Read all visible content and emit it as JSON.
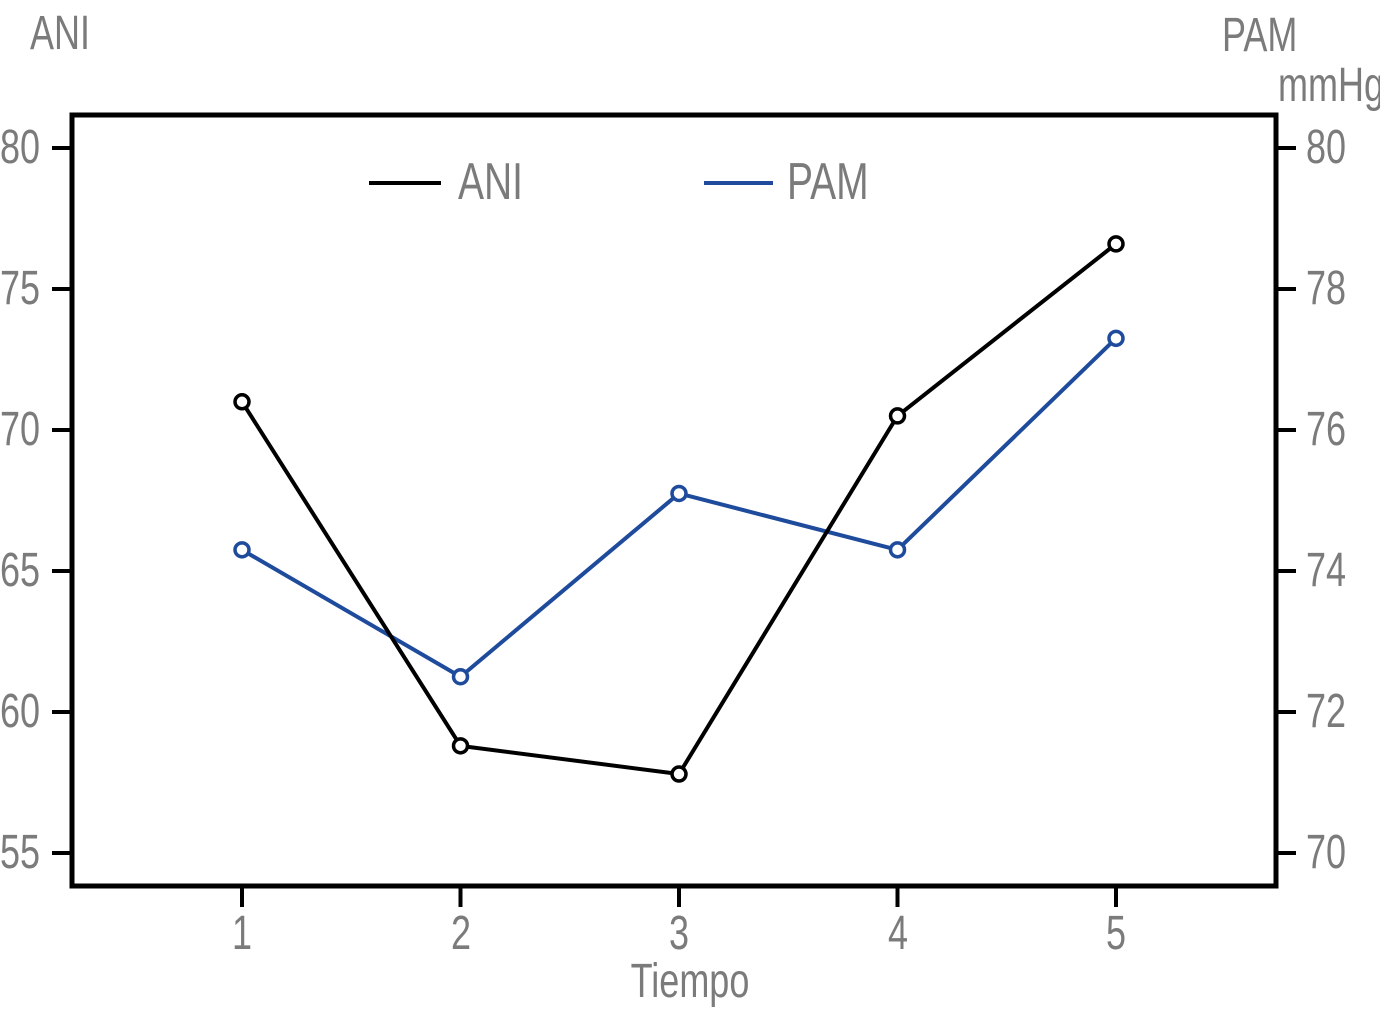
{
  "chart_data": {
    "type": "line",
    "x": [
      1,
      2,
      3,
      4,
      5
    ],
    "x_tick_labels": [
      "1",
      "2",
      "3",
      "4",
      "5"
    ],
    "xlabel": "Tiempo",
    "left_axis": {
      "title": "ANI",
      "ticks": [
        80,
        75,
        70,
        65,
        60,
        55
      ],
      "min": 55,
      "max": 80
    },
    "right_axis": {
      "title": "PAM",
      "units": "mmHg",
      "ticks": [
        80,
        78,
        76,
        74,
        72,
        70
      ],
      "min": 70,
      "max": 80
    },
    "series": [
      {
        "name": "ANI",
        "axis": "left",
        "color": "#000000",
        "marker": "open-circle",
        "values": [
          71.0,
          58.8,
          57.8,
          70.5,
          76.6
        ]
      },
      {
        "name": "PAM",
        "axis": "right",
        "color": "#1e4b9c",
        "marker": "open-circle",
        "values": [
          74.3,
          72.5,
          75.1,
          74.3,
          77.3
        ]
      }
    ],
    "legend": {
      "entries": [
        "ANI",
        "PAM"
      ],
      "position": "top-inside"
    },
    "grid": false
  },
  "colors": {
    "background": "#ffffff",
    "axis": "#000000",
    "text": "#7b7b7b",
    "ani_line": "#000000",
    "pam_line": "#1e4b9c"
  }
}
